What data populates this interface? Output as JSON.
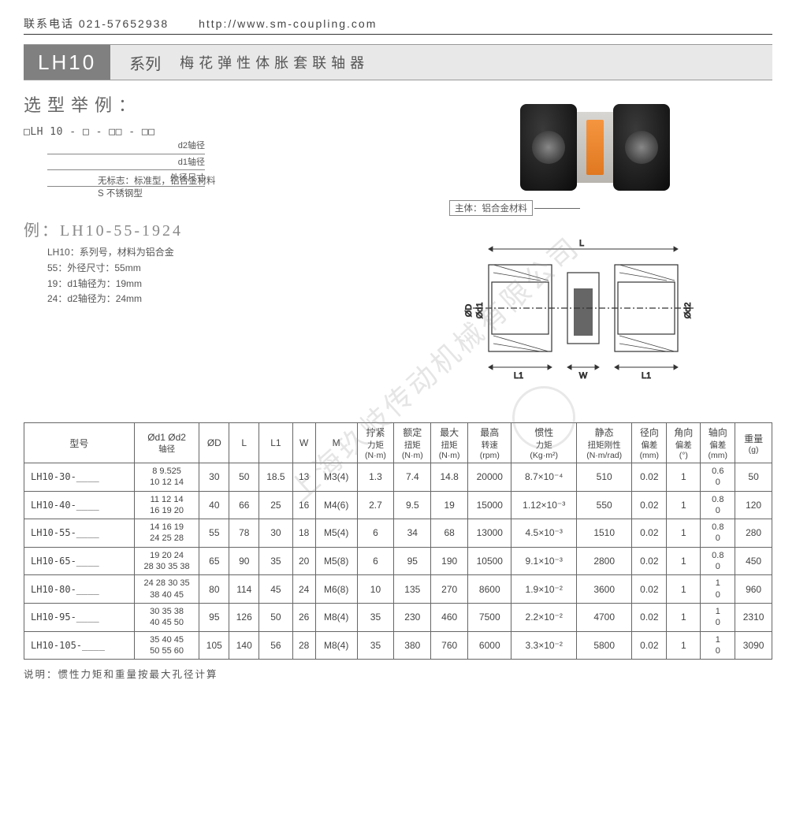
{
  "header": {
    "phone": "联系电话 021-57652938",
    "url": "http://www.sm-coupling.com"
  },
  "title": {
    "code": "LH10",
    "series": "系列",
    "desc": "梅花弹性体胀套联轴器"
  },
  "selection": {
    "heading": "选型举例：",
    "pattern": "□LH 10 - □ - □□ - □□",
    "legend": {
      "d2": "d2轴径",
      "d1": "d1轴径",
      "od": "外径尺寸"
    },
    "material_note1": "无标志：标准型，铝合金材料",
    "material_note2": "S 不锈钢型",
    "example_label": "例：LH10-55-1924",
    "ex_lines": {
      "a": "LH10：系列号，材料为铝合金",
      "b": "55：外径尺寸：55mm",
      "c": "19：d1轴径为：19mm",
      "d": "24：d2轴径为：24mm"
    }
  },
  "photo_label": "主体：铝合金材料",
  "drawing_labels": {
    "L": "L",
    "L1": "L1",
    "W": "W",
    "D": "ØD",
    "d1": "Ød1",
    "d2": "Ød2"
  },
  "table": {
    "columns": [
      {
        "h": "型号"
      },
      {
        "h": "Ød1 Ød2",
        "u": "轴径"
      },
      {
        "h": "ØD"
      },
      {
        "h": "L"
      },
      {
        "h": "L1"
      },
      {
        "h": "W"
      },
      {
        "h": "M"
      },
      {
        "h": "拧紧",
        "u": "力矩",
        "u2": "(N·m)"
      },
      {
        "h": "额定",
        "u": "扭矩",
        "u2": "(N·m)"
      },
      {
        "h": "最大",
        "u": "扭矩",
        "u2": "(N·m)"
      },
      {
        "h": "最高",
        "u": "转速",
        "u2": "(rpm)"
      },
      {
        "h": "惯性",
        "u": "力矩",
        "u2": "(Kg·m²)"
      },
      {
        "h": "静态",
        "u": "扭矩刚性",
        "u2": "(N·m/rad)"
      },
      {
        "h": "径向",
        "u": "偏差",
        "u2": "(mm)"
      },
      {
        "h": "角向",
        "u": "偏差",
        "u2": "(°)"
      },
      {
        "h": "轴向",
        "u": "偏差",
        "u2": "(mm)"
      },
      {
        "h": "重量",
        "u": "(g)"
      }
    ],
    "rows": [
      {
        "model": "LH10-30-____",
        "shaft": "8 9.525\n10 12 14",
        "D": "30",
        "L": "50",
        "L1": "18.5",
        "W": "13",
        "M": "M3(4)",
        "t": "1.3",
        "rt": "7.4",
        "mt": "14.8",
        "rpm": "20000",
        "in": "8.7×10⁻⁴",
        "st": "510",
        "rd": "0.02",
        "ad": "1",
        "ax": "0.6\n0",
        "wt": "50"
      },
      {
        "model": "LH10-40-____",
        "shaft": "11 12 14\n16 19 20",
        "D": "40",
        "L": "66",
        "L1": "25",
        "W": "16",
        "M": "M4(6)",
        "t": "2.7",
        "rt": "9.5",
        "mt": "19",
        "rpm": "15000",
        "in": "1.12×10⁻³",
        "st": "550",
        "rd": "0.02",
        "ad": "1",
        "ax": "0.8\n0",
        "wt": "120"
      },
      {
        "model": "LH10-55-____",
        "shaft": "14 16 19\n24 25 28",
        "D": "55",
        "L": "78",
        "L1": "30",
        "W": "18",
        "M": "M5(4)",
        "t": "6",
        "rt": "34",
        "mt": "68",
        "rpm": "13000",
        "in": "4.5×10⁻³",
        "st": "1510",
        "rd": "0.02",
        "ad": "1",
        "ax": "0.8\n0",
        "wt": "280"
      },
      {
        "model": "LH10-65-____",
        "shaft": "19 20 24\n28 30 35 38",
        "D": "65",
        "L": "90",
        "L1": "35",
        "W": "20",
        "M": "M5(8)",
        "t": "6",
        "rt": "95",
        "mt": "190",
        "rpm": "10500",
        "in": "9.1×10⁻³",
        "st": "2800",
        "rd": "0.02",
        "ad": "1",
        "ax": "0.8\n0",
        "wt": "450"
      },
      {
        "model": "LH10-80-____",
        "shaft": "24 28 30 35\n38 40 45",
        "D": "80",
        "L": "114",
        "L1": "45",
        "W": "24",
        "M": "M6(8)",
        "t": "10",
        "rt": "135",
        "mt": "270",
        "rpm": "8600",
        "in": "1.9×10⁻²",
        "st": "3600",
        "rd": "0.02",
        "ad": "1",
        "ax": "1\n0",
        "wt": "960"
      },
      {
        "model": "LH10-95-____",
        "shaft": "30 35 38\n40 45 50",
        "D": "95",
        "L": "126",
        "L1": "50",
        "W": "26",
        "M": "M8(4)",
        "t": "35",
        "rt": "230",
        "mt": "460",
        "rpm": "7500",
        "in": "2.2×10⁻²",
        "st": "4700",
        "rd": "0.02",
        "ad": "1",
        "ax": "1\n0",
        "wt": "2310"
      },
      {
        "model": "LH10-105-____",
        "shaft": "35 40 45\n50 55 60",
        "D": "105",
        "L": "140",
        "L1": "56",
        "W": "28",
        "M": "M8(4)",
        "t": "35",
        "rt": "380",
        "mt": "760",
        "rpm": "6000",
        "in": "3.3×10⁻²",
        "st": "5800",
        "rd": "0.02",
        "ad": "1",
        "ax": "1\n0",
        "wt": "3090"
      }
    ]
  },
  "footnote": "说明：惯性力矩和重量按最大孔径计算"
}
